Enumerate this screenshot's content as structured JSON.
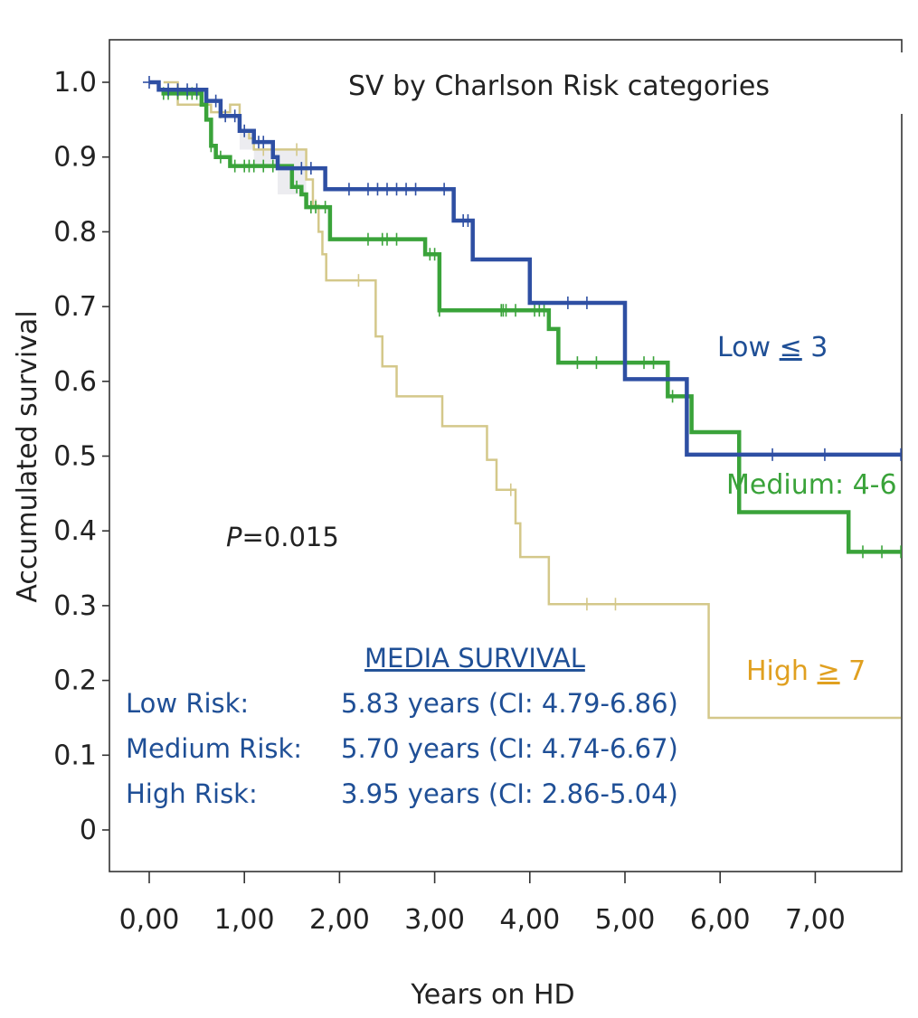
{
  "chart_data": {
    "type": "line",
    "subtype": "kaplan-meier",
    "title": "SV by Charlson Risk categories",
    "xlabel": "Years on HD",
    "ylabel": "Accumulated survival",
    "xlim": [
      -0.4,
      7.9
    ],
    "ylim": [
      -0.056,
      1.057
    ],
    "x_ticks": [
      0,
      1,
      2,
      3,
      4,
      5,
      6,
      7
    ],
    "x_tick_labels": [
      "0,00",
      "1,00",
      "2,00",
      "3,00",
      "4,00",
      "5,00",
      "6,00",
      "7,00"
    ],
    "y_ticks": [
      1.0,
      0.9,
      0.8,
      0.7,
      0.6,
      0.5,
      0.4,
      0.3,
      0.2,
      0.1,
      0
    ],
    "y_tick_labels": [
      "1.0",
      "0.9",
      "0.8",
      "0.7",
      "0.6",
      "0.5",
      "0.4",
      "0.3",
      "0.2",
      "0.1",
      "0"
    ],
    "grid": false,
    "p_value_prefix": "P",
    "p_value_text": "=0.015",
    "series": [
      {
        "name": "Low ≤ 3",
        "label_text": "Low ",
        "label_symbol": "≤",
        "label_suffix": " 3",
        "color": "#2e4fa3",
        "label_color": "#1f4f96",
        "steps": [
          [
            0,
            1.0
          ],
          [
            0.1,
            0.99
          ],
          [
            0.6,
            0.975
          ],
          [
            0.75,
            0.955
          ],
          [
            0.95,
            0.935
          ],
          [
            1.1,
            0.92
          ],
          [
            1.3,
            0.9
          ],
          [
            1.35,
            0.885
          ],
          [
            1.85,
            0.857
          ],
          [
            3.2,
            0.815
          ],
          [
            3.4,
            0.763
          ],
          [
            4.0,
            0.705
          ],
          [
            5.0,
            0.603
          ],
          [
            5.65,
            0.502
          ],
          [
            7.9,
            0.502
          ]
        ],
        "censors": [
          0.0,
          0.2,
          0.3,
          0.4,
          0.5,
          0.7,
          0.8,
          0.9,
          1.0,
          1.15,
          1.2,
          1.6,
          1.7,
          2.1,
          2.3,
          2.4,
          2.5,
          2.6,
          2.7,
          2.8,
          3.1,
          3.3,
          3.35,
          4.4,
          4.6,
          6.55,
          7.1,
          7.9
        ]
      },
      {
        "name": "Medium: 4-6",
        "label_text": "Medium: 4-6",
        "color": "#3aa33a",
        "label_color": "#3aa33a",
        "steps": [
          [
            0.1,
            0.99
          ],
          [
            0.15,
            0.985
          ],
          [
            0.55,
            0.97
          ],
          [
            0.6,
            0.95
          ],
          [
            0.65,
            0.915
          ],
          [
            0.7,
            0.9
          ],
          [
            0.85,
            0.888
          ],
          [
            1.45,
            0.888
          ],
          [
            1.5,
            0.86
          ],
          [
            1.6,
            0.85
          ],
          [
            1.65,
            0.833
          ],
          [
            1.9,
            0.79
          ],
          [
            2.9,
            0.77
          ],
          [
            3.05,
            0.695
          ],
          [
            4.15,
            0.695
          ],
          [
            4.2,
            0.67
          ],
          [
            4.3,
            0.625
          ],
          [
            5.45,
            0.58
          ],
          [
            5.7,
            0.532
          ],
          [
            6.2,
            0.425
          ],
          [
            7.35,
            0.372
          ],
          [
            7.9,
            0.372
          ]
        ],
        "censors": [
          0.15,
          0.2,
          0.3,
          0.4,
          0.45,
          0.5,
          0.65,
          0.75,
          0.9,
          1.0,
          1.05,
          1.1,
          1.2,
          1.3,
          1.55,
          1.7,
          1.75,
          1.85,
          2.3,
          2.45,
          2.5,
          2.6,
          2.95,
          3.0,
          3.05,
          3.7,
          3.72,
          3.75,
          3.85,
          4.05,
          4.1,
          4.15,
          4.5,
          4.7,
          5.2,
          5.3,
          5.5,
          7.5,
          7.7,
          7.9
        ]
      },
      {
        "name": "High ≥ 7",
        "label_text": "High ",
        "label_symbol": "≥",
        "label_suffix": " 7",
        "color": "#d4c88a",
        "label_color": "#e0a020",
        "steps": [
          [
            0.15,
            1.0
          ],
          [
            0.3,
            0.97
          ],
          [
            0.6,
            0.97
          ],
          [
            0.65,
            0.96
          ],
          [
            0.85,
            0.97
          ],
          [
            0.95,
            0.935
          ],
          [
            1.05,
            0.925
          ],
          [
            1.1,
            0.91
          ],
          [
            1.35,
            0.91
          ],
          [
            1.65,
            0.87
          ],
          [
            1.72,
            0.835
          ],
          [
            1.78,
            0.8
          ],
          [
            1.82,
            0.77
          ],
          [
            1.86,
            0.735
          ],
          [
            2.35,
            0.735
          ],
          [
            2.38,
            0.66
          ],
          [
            2.45,
            0.62
          ],
          [
            2.6,
            0.58
          ],
          [
            3.05,
            0.58
          ],
          [
            3.08,
            0.54
          ],
          [
            3.5,
            0.54
          ],
          [
            3.55,
            0.495
          ],
          [
            3.65,
            0.455
          ],
          [
            3.85,
            0.41
          ],
          [
            3.9,
            0.365
          ],
          [
            4.2,
            0.302
          ],
          [
            5.85,
            0.302
          ],
          [
            5.88,
            0.15
          ],
          [
            7.9,
            0.15
          ]
        ],
        "censors": [
          0.75,
          1.2,
          1.3,
          1.55,
          1.75,
          2.2,
          3.8,
          4.6,
          4.9
        ]
      }
    ]
  },
  "median_survival": {
    "heading": "MEDIA SURVIVAL",
    "rows": [
      {
        "label": "Low Risk:",
        "value": "5.83 years (CI: 4.79-6.86)"
      },
      {
        "label": "Medium Risk:",
        "value": "5.70 years (CI: 4.74-6.67)"
      },
      {
        "label": "High Risk:",
        "value": "3.95 years (CI: 2.86-5.04)"
      }
    ]
  }
}
